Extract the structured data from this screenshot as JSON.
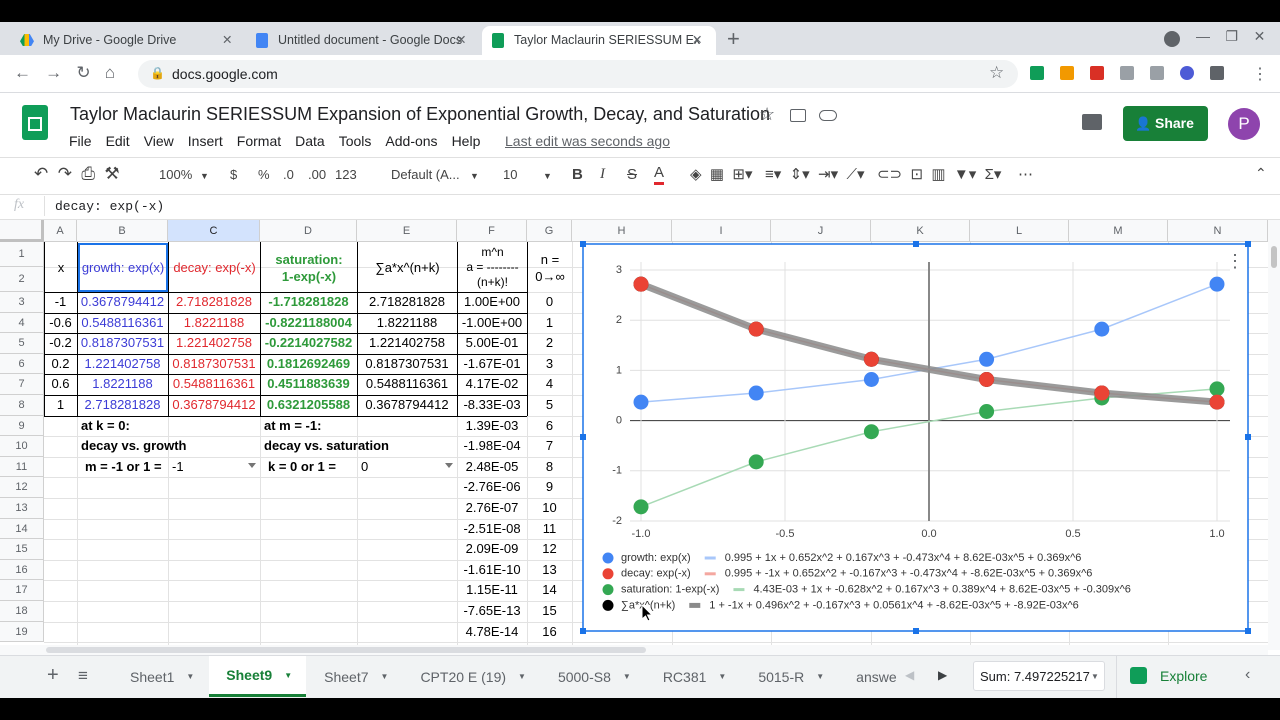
{
  "browser": {
    "tabs": [
      "My Drive - Google Drive",
      "Untitled document - Google Docs",
      "Taylor Maclaurin SERIESSUM Ex"
    ],
    "new_tab": "+",
    "url": "docs.google.com"
  },
  "doc": {
    "title": "Taylor Maclaurin SERIESSUM Expansion of Exponential Growth, Decay, and Saturation",
    "menu": [
      "File",
      "Edit",
      "View",
      "Insert",
      "Format",
      "Data",
      "Tools",
      "Add-ons",
      "Help"
    ],
    "last_edit": "Last edit was seconds ago",
    "share": "Share",
    "avatar": "P"
  },
  "toolbar": {
    "zoom": "100%",
    "currency": "$",
    "percent": "%",
    "dec_less": ".0",
    "dec_more": ".00",
    "format": "123",
    "font": "Default (A...",
    "size": "10",
    "bold": "B",
    "italic": "I",
    "strike": "S",
    "text_color": "A"
  },
  "formula_bar": {
    "fx": "fx",
    "content": "decay: exp(-x)"
  },
  "sheet": {
    "columns": [
      "A",
      "B",
      "C",
      "D",
      "E",
      "F",
      "G",
      "H",
      "I",
      "J",
      "K",
      "L",
      "M",
      "N"
    ],
    "row_numbers": [
      "1",
      "2",
      "3",
      "4",
      "5",
      "6",
      "7",
      "8",
      "9",
      "10",
      "11",
      "12",
      "13",
      "14",
      "15",
      "16",
      "17",
      "18",
      "19"
    ],
    "selected_column": 2,
    "header": [
      [
        "x"
      ],
      [
        "growth: exp(x)"
      ],
      [
        "decay: exp(-x)"
      ],
      [
        "saturation:",
        "1-exp(-x)"
      ],
      [
        "∑a*x^(n+k)"
      ],
      [
        "m^n",
        "a = --------",
        "(n+k)!"
      ],
      [
        "n =",
        "0→∞"
      ]
    ],
    "cells": [
      [
        "-1",
        "0.3678794412",
        "2.718281828",
        "-1.718281828",
        "2.718281828",
        "1.00E+00",
        "0"
      ],
      [
        "-0.6",
        "0.5488116361",
        "1.8221188",
        "-0.8221188004",
        "1.8221188",
        "-1.00E+00",
        "1"
      ],
      [
        "-0.2",
        "0.8187307531",
        "1.221402758",
        "-0.2214027582",
        "1.221402758",
        "5.00E-01",
        "2"
      ],
      [
        "0.2",
        "1.221402758",
        "0.8187307531",
        "0.1812692469",
        "0.8187307531",
        "-1.67E-01",
        "3"
      ],
      [
        "0.6",
        "1.8221188",
        "0.5488116361",
        "0.4511883639",
        "0.5488116361",
        "4.17E-02",
        "4"
      ],
      [
        "1",
        "2.718281828",
        "0.3678794412",
        "0.6321205588",
        "0.3678794412",
        "-8.33E-03",
        "5"
      ],
      [
        null,
        "at k = 0:",
        null,
        "at m = -1:",
        null,
        "1.39E-03",
        "6"
      ],
      [
        null,
        "decay vs. growth",
        null,
        "decay vs. saturation",
        null,
        "-1.98E-04",
        "7"
      ],
      [
        null,
        "m = -1 or 1 =",
        "-1",
        "k = 0 or 1 =",
        "0",
        "2.48E-05",
        "8"
      ],
      [
        null,
        null,
        null,
        null,
        null,
        "-2.76E-06",
        "9"
      ],
      [
        null,
        null,
        null,
        null,
        null,
        "2.76E-07",
        "10"
      ],
      [
        null,
        null,
        null,
        null,
        null,
        "-2.51E-08",
        "11"
      ],
      [
        null,
        null,
        null,
        null,
        null,
        "2.09E-09",
        "12"
      ],
      [
        null,
        null,
        null,
        null,
        null,
        "-1.61E-10",
        "13"
      ],
      [
        null,
        null,
        null,
        null,
        null,
        "1.15E-11",
        "14"
      ],
      [
        null,
        null,
        null,
        null,
        null,
        "-7.65E-13",
        "15"
      ],
      [
        null,
        null,
        null,
        null,
        null,
        "4.78E-14",
        "16"
      ]
    ],
    "column_colors": [
      "#000000",
      "#3c3cd6",
      "#e0282e",
      "#2e9a3a",
      "#000000",
      "#000000",
      "#000000"
    ]
  },
  "chart": {
    "type": "scatter",
    "x": [
      -1,
      -0.6,
      -0.2,
      0.2,
      0.6,
      1
    ],
    "xlim": [
      -1,
      1
    ],
    "ylim": [
      -2,
      3
    ],
    "xticks": [
      {
        "value": -1,
        "label": "-1.0"
      },
      {
        "value": -0.5,
        "label": "-0.5"
      },
      {
        "value": 0,
        "label": "0.0"
      },
      {
        "value": 0.5,
        "label": "0.5"
      },
      {
        "value": 1,
        "label": "1.0"
      }
    ],
    "yticks": [
      -2,
      -1,
      0,
      1,
      2,
      3
    ],
    "grid": true,
    "series": [
      {
        "name": "growth: exp(x)",
        "color": "#4285f4",
        "trendline_color": "#a8c7fa",
        "values": [
          0.3678794412,
          0.5488116361,
          0.8187307531,
          1.221402758,
          1.8221188,
          2.718281828
        ],
        "trendline": "0.995 + 1x + 0.652x^2 + 0.167x^3 + -0.473x^4 + 8.62E-03x^5 + 0.369x^6"
      },
      {
        "name": "decay: exp(-x)",
        "color": "#ea4335",
        "trendline_color": "#f4a7a0",
        "values": [
          2.718281828,
          1.8221188,
          1.221402758,
          0.8187307531,
          0.5488116361,
          0.3678794412
        ],
        "trendline": "0.995 + -1x + 0.652x^2 + -0.167x^3 + -0.473x^4 + -8.62E-03x^5 + 0.369x^6"
      },
      {
        "name": "saturation: 1-exp(-x)",
        "color": "#34a853",
        "trendline_color": "#a8dab5",
        "values": [
          -1.718281828,
          -0.8221188004,
          -0.2214027582,
          0.1812692469,
          0.4511883639,
          0.6321205588
        ],
        "trendline": "4.43E-03 + 1x + -0.628x^2 + 0.167x^3 + 0.389x^4 + 8.62E-03x^5 + -0.309x^6"
      },
      {
        "name": "∑a*x^(n+k)",
        "color": "#000000",
        "trendline_color": "#8a8a8a",
        "values": [
          2.718281828,
          1.8221188,
          1.221402758,
          0.8187307531,
          0.5488116361,
          0.3678794412
        ],
        "trendline": "1 + -1x + 0.496x^2 + -0.167x^3 + 0.0561x^4 + -8.62E-03x^5 + -8.92E-03x^6"
      }
    ]
  },
  "footer": {
    "tabs": [
      "Sheet1",
      "Sheet9",
      "Sheet7",
      "CPT20 E (19)",
      "5000-S8",
      "RC381",
      "5015-R",
      "answe"
    ],
    "active_tab": 1,
    "sum": "Sum: 7.497225217",
    "explore": "Explore"
  }
}
